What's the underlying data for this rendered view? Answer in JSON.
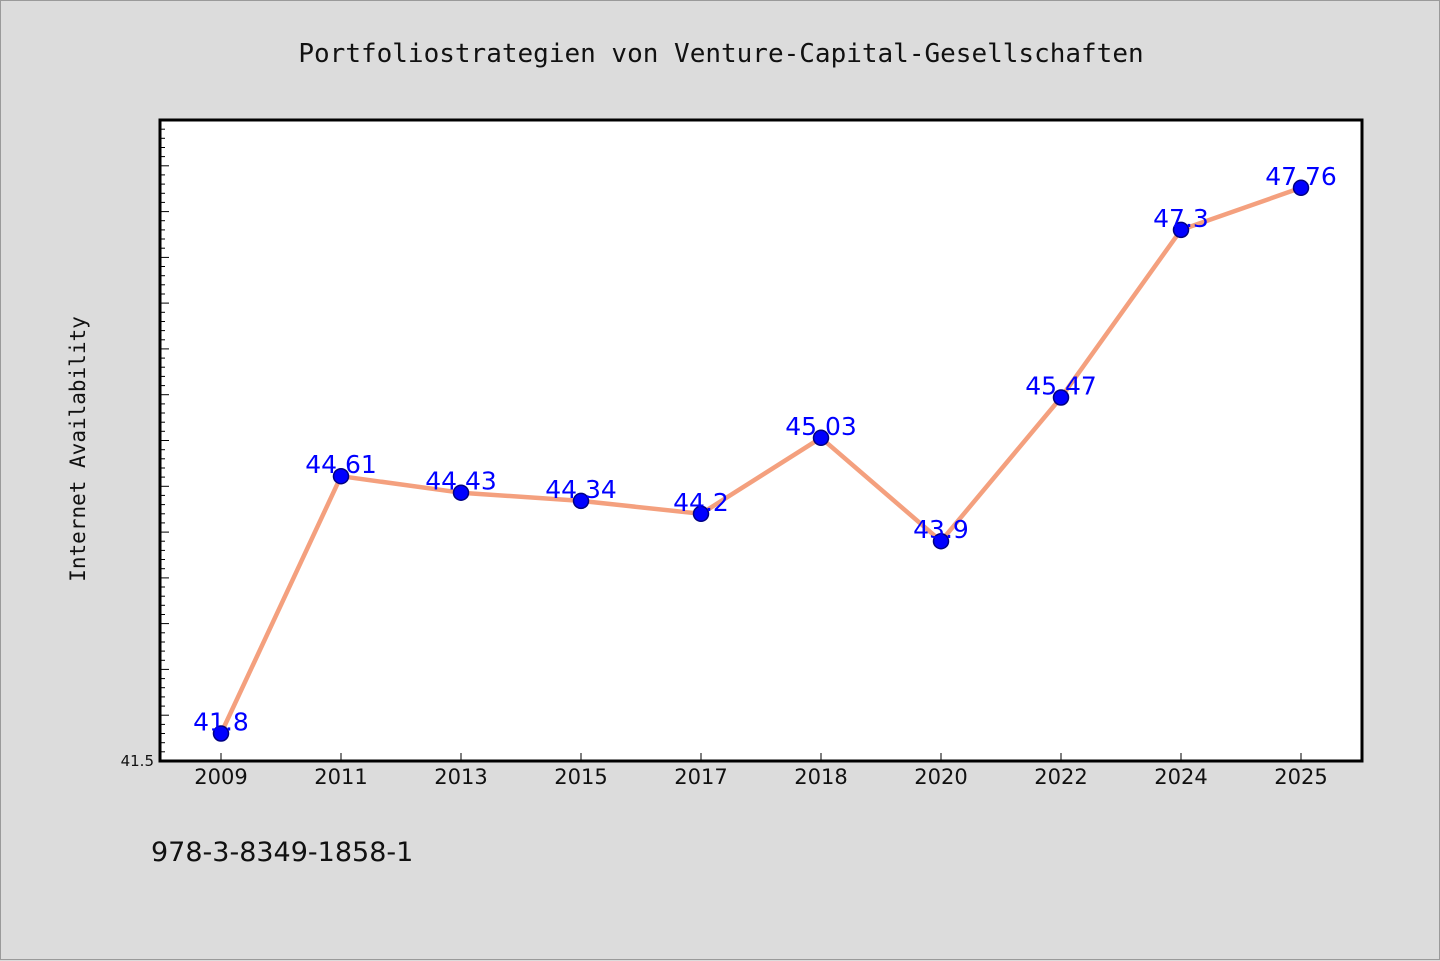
{
  "chart_data": {
    "type": "line",
    "title": "Portfoliostrategien von Venture-Capital-Gesellschaften",
    "xlabel": "",
    "ylabel": "Internet Availability",
    "categories": [
      "2009",
      "2011",
      "2013",
      "2015",
      "2017",
      "2018",
      "2020",
      "2022",
      "2024",
      "2025"
    ],
    "series": [
      {
        "values": [
          41.8,
          44.61,
          44.43,
          44.34,
          44.2,
          45.03,
          43.9,
          45.47,
          47.3,
          47.76
        ]
      }
    ],
    "data_labels": [
      "41.8",
      "44.61",
      "44.43",
      "44.34",
      "44.2",
      "45.03",
      "43.9",
      "45.47",
      "47.3",
      "47.76"
    ],
    "ylim": [
      41.5,
      48.5
    ],
    "y_tick_labels": [
      "41.5"
    ],
    "grid": false,
    "legend": "none"
  },
  "footer_text": "978-3-8349-1858-1",
  "colors": {
    "background": "#dcdcdc",
    "plot_background": "#ffffff",
    "line": "#f4a07e",
    "marker": "#0000ff",
    "marker_edge": "#000080",
    "data_label": "#0000ff",
    "text": "#111111"
  }
}
